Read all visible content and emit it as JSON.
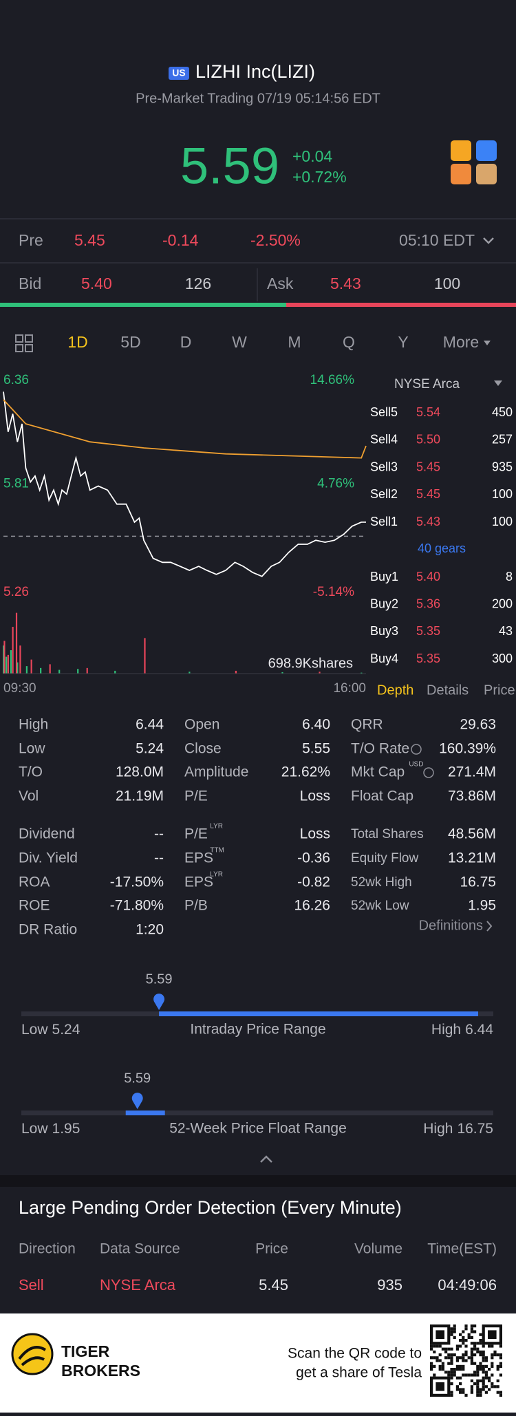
{
  "header": {
    "badge": "US",
    "title": "LIZHI Inc(LIZI)",
    "subtitle": "Pre-Market Trading 07/19 05:14:56 EDT"
  },
  "quote": {
    "price": "5.59",
    "change": "+0.04",
    "change_pct": "+0.72%"
  },
  "pre": {
    "label": "Pre",
    "price": "5.45",
    "change": "-0.14",
    "change_pct": "-2.50%",
    "time": "05:10 EDT"
  },
  "bid_ask": {
    "bid_label": "Bid",
    "bid": "5.40",
    "bid_size": "126",
    "ask_label": "Ask",
    "ask": "5.43",
    "ask_size": "100"
  },
  "tabs": [
    "1D",
    "5D",
    "D",
    "W",
    "M",
    "Q",
    "Y",
    "More"
  ],
  "chart_data": {
    "type": "line",
    "xlim": [
      0,
      390
    ],
    "xticks": [
      {
        "value": 0,
        "label": "09:30"
      },
      {
        "value": 390,
        "label": "16:00"
      }
    ],
    "ylim": [
      5.26,
      6.36
    ],
    "yticks": [
      5.26,
      5.81,
      6.36
    ],
    "y2lim": [
      -5.14,
      14.66
    ],
    "y2ticks": [
      {
        "value": -5.14,
        "label": "-5.14%"
      },
      {
        "value": 4.76,
        "label": "4.76%"
      },
      {
        "value": 14.66,
        "label": "14.66%"
      }
    ],
    "prev_close": 5.55,
    "series": [
      {
        "color": "#ffffff",
        "x": [
          0,
          5,
          10,
          15,
          20,
          24,
          29,
          34,
          39,
          44,
          49,
          54,
          59,
          63,
          68,
          73,
          78,
          83,
          88,
          93,
          102,
          112,
          122,
          132,
          141,
          146,
          151,
          161,
          171,
          180,
          190,
          200,
          210,
          219,
          229,
          239,
          249,
          258,
          268,
          278,
          288,
          297,
          307,
          317,
          327,
          336,
          346,
          356,
          366,
          375,
          385,
          390
        ],
        "values": [
          6.27,
          6.07,
          6.16,
          6.02,
          6.11,
          5.89,
          5.82,
          5.85,
          5.78,
          5.85,
          5.73,
          5.78,
          5.71,
          5.78,
          5.76,
          5.85,
          5.94,
          5.85,
          5.87,
          5.78,
          5.8,
          5.78,
          5.71,
          5.71,
          5.62,
          5.64,
          5.53,
          5.44,
          5.42,
          5.42,
          5.4,
          5.38,
          5.4,
          5.38,
          5.36,
          5.38,
          5.42,
          5.4,
          5.37,
          5.35,
          5.4,
          5.42,
          5.47,
          5.51,
          5.51,
          5.53,
          5.52,
          5.53,
          5.56,
          5.6,
          5.62,
          5.62
        ]
      },
      {
        "color": "#f0a030",
        "x": [
          0,
          24,
          93,
          151,
          239,
          385,
          390
        ],
        "values": [
          6.23,
          6.11,
          6.02,
          5.99,
          5.96,
          5.94,
          6.0
        ]
      }
    ],
    "volume": {
      "label": "698.9Kshares",
      "ylim": [
        0,
        698.9
      ],
      "series": [
        {
          "color": "#2fc07a",
          "x": [
            0,
            3,
            8,
            15,
            25,
            40,
            60,
            80,
            120,
            200,
            300,
            385
          ],
          "values": [
            300,
            180,
            250,
            120,
            80,
            60,
            40,
            50,
            30,
            20,
            15,
            10
          ]
        },
        {
          "color": "#e8455a",
          "x": [
            1,
            5,
            10,
            14,
            18,
            30,
            50,
            90,
            152,
            250,
            340
          ],
          "values": [
            350,
            200,
            500,
            650,
            300,
            150,
            100,
            60,
            380,
            30,
            20
          ]
        }
      ]
    }
  },
  "order_book": {
    "exchange": "NYSE Arca",
    "gears": "40 gears",
    "sells": [
      {
        "label": "Sell5",
        "price": "5.54",
        "size": "450"
      },
      {
        "label": "Sell4",
        "price": "5.50",
        "size": "257"
      },
      {
        "label": "Sell3",
        "price": "5.45",
        "size": "935"
      },
      {
        "label": "Sell2",
        "price": "5.45",
        "size": "100"
      },
      {
        "label": "Sell1",
        "price": "5.43",
        "size": "100"
      }
    ],
    "buys": [
      {
        "label": "Buy1",
        "price": "5.40",
        "size": "8"
      },
      {
        "label": "Buy2",
        "price": "5.36",
        "size": "200"
      },
      {
        "label": "Buy3",
        "price": "5.35",
        "size": "43"
      },
      {
        "label": "Buy4",
        "price": "5.35",
        "size": "300"
      }
    ],
    "tabs": [
      "Depth",
      "Details",
      "Price"
    ]
  },
  "stats": {
    "columns": [
      [
        {
          "label": "High",
          "value": "6.44"
        },
        {
          "label": "Low",
          "value": "5.24"
        },
        {
          "label": "T/O",
          "value": "128.0M"
        },
        {
          "label": "Vol",
          "value": "21.19M"
        },
        {
          "label": "Dividend",
          "value": "--"
        },
        {
          "label": "Div. Yield",
          "value": "--"
        },
        {
          "label": "ROA",
          "value": "-17.50%"
        },
        {
          "label": "ROE",
          "value": "-71.80%"
        },
        {
          "label": "DR Ratio",
          "value": "1:20"
        }
      ],
      [
        {
          "label": "Open",
          "value": "6.40"
        },
        {
          "label": "Close",
          "value": "5.55"
        },
        {
          "label": "Amplitude",
          "value": "21.62%"
        },
        {
          "label": "P/E",
          "value": "Loss"
        },
        {
          "label": "P/E",
          "sup": "LYR",
          "value": "Loss"
        },
        {
          "label": "EPS",
          "sup": "TTM",
          "value": "-0.36"
        },
        {
          "label": "EPS",
          "sup": "LYR",
          "value": "-0.82"
        },
        {
          "label": "P/B",
          "value": "16.26"
        }
      ],
      [
        {
          "label": "QRR",
          "value": "29.63"
        },
        {
          "label": "T/O Rate",
          "value": "160.39%"
        },
        {
          "label": "Mkt Cap",
          "sup": "USD",
          "value": "271.4M"
        },
        {
          "label": "Float Cap",
          "value": "73.86M"
        },
        {
          "label": "Total Shares",
          "value": "48.56M"
        },
        {
          "label": "Equity Flow",
          "value": "13.21M"
        },
        {
          "label": "52wk High",
          "value": "16.75"
        },
        {
          "label": "52wk Low",
          "value": "1.95"
        }
      ]
    ],
    "definitions": "Definitions"
  },
  "ranges": [
    {
      "current": 5.59,
      "low_label": "Low",
      "low": 5.24,
      "title": "Intraday Price Range",
      "high_label": "High",
      "high": 6.44
    },
    {
      "current": 5.59,
      "low_label": "Low",
      "low": 1.95,
      "title": "52-Week Price Float Range",
      "high_label": "High",
      "high": 16.75
    }
  ],
  "pending": {
    "title": "Large Pending Order Detection (Every Minute)",
    "headers": [
      "Direction",
      "Data Source",
      "Price",
      "Volume",
      "Time(EST)"
    ],
    "rows": [
      [
        "Sell",
        "NYSE Arca",
        "5.45",
        "935",
        "04:49:06"
      ]
    ]
  },
  "footer": {
    "brand": [
      "TIGER",
      "BROKERS"
    ],
    "qr_text": [
      "Scan the QR code to",
      "get a share of Tesla"
    ]
  }
}
